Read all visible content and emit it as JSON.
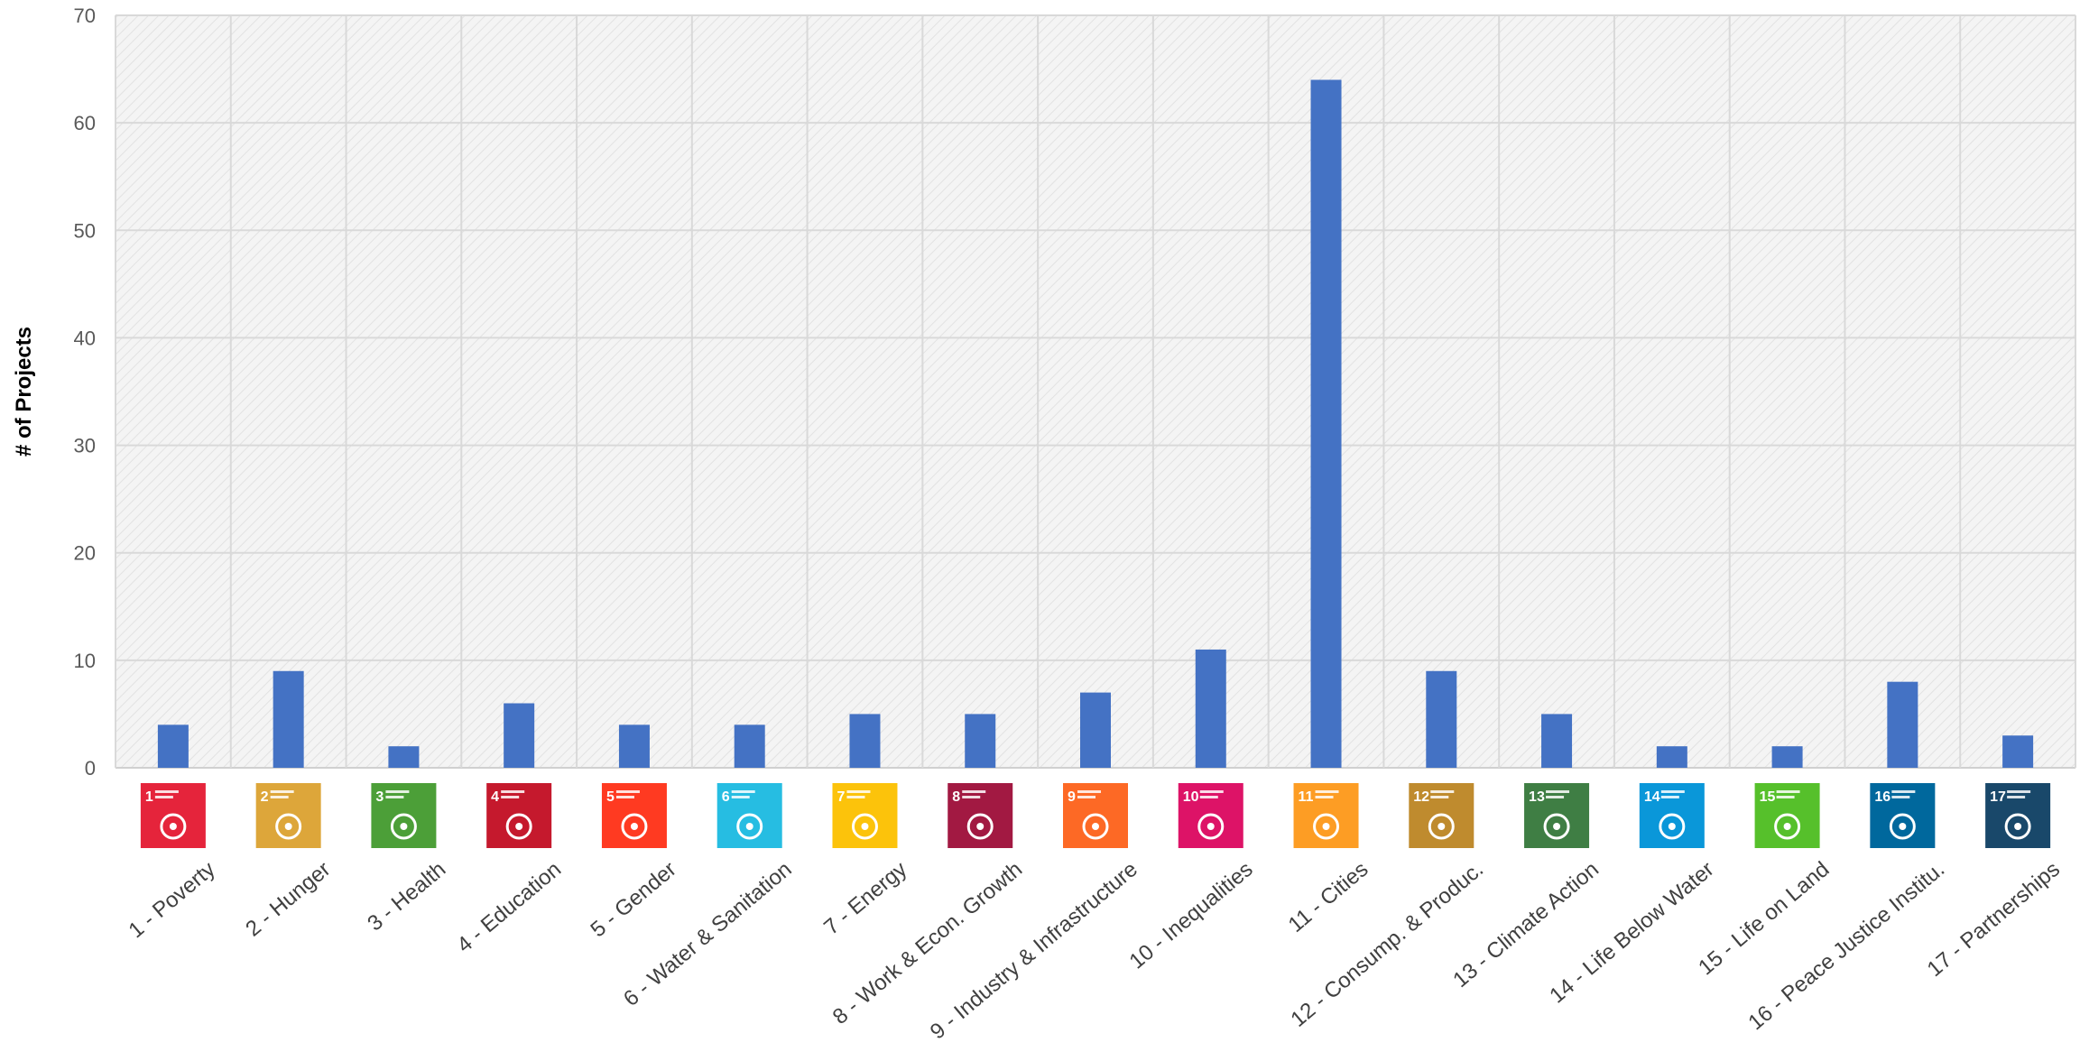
{
  "chart_data": {
    "type": "bar",
    "title": "",
    "xlabel": "",
    "ylabel": "# of Projects",
    "ylim": [
      0,
      70
    ],
    "yticks": [
      0,
      10,
      20,
      30,
      40,
      50,
      60,
      70
    ],
    "grid": true,
    "legend": "none",
    "bar_color": "#4472C4",
    "categories": [
      "1 - Poverty",
      "2 - Hunger",
      "3 - Health",
      "4 - Education",
      "5 - Gender",
      "6 - Water & Sanitation",
      "7 - Energy",
      "8 - Work & Econ. Growth",
      "9 - Industry & Infrastructure",
      "10 - Inequalities",
      "11 - Cities",
      "12 - Consump. & Produc.",
      "13 - Climate Action",
      "14 - Life Below Water",
      "15 - Life on Land",
      "16 - Peace Justice Institu.",
      "17 - Partnerships"
    ],
    "values": [
      4,
      9,
      2,
      6,
      4,
      4,
      5,
      5,
      7,
      11,
      64,
      9,
      5,
      2,
      2,
      8,
      3
    ],
    "icons": [
      {
        "number": "1",
        "color": "#E5243B",
        "name": "no-poverty-icon"
      },
      {
        "number": "2",
        "color": "#DDA63A",
        "name": "zero-hunger-icon"
      },
      {
        "number": "3",
        "color": "#4C9F38",
        "name": "good-health-icon"
      },
      {
        "number": "4",
        "color": "#C5192D",
        "name": "quality-education-icon"
      },
      {
        "number": "5",
        "color": "#FF3A21",
        "name": "gender-equality-icon"
      },
      {
        "number": "6",
        "color": "#26BDE2",
        "name": "clean-water-icon"
      },
      {
        "number": "7",
        "color": "#FCC30B",
        "name": "clean-energy-icon"
      },
      {
        "number": "8",
        "color": "#A21942",
        "name": "decent-work-icon"
      },
      {
        "number": "9",
        "color": "#FD6925",
        "name": "industry-innovation-icon"
      },
      {
        "number": "10",
        "color": "#DD1367",
        "name": "reduced-inequalities-icon"
      },
      {
        "number": "11",
        "color": "#FD9D24",
        "name": "sustainable-cities-icon"
      },
      {
        "number": "12",
        "color": "#BF8B2E",
        "name": "responsible-consumption-icon"
      },
      {
        "number": "13",
        "color": "#3F7E44",
        "name": "climate-action-icon"
      },
      {
        "number": "14",
        "color": "#0A97D9",
        "name": "life-below-water-icon"
      },
      {
        "number": "15",
        "color": "#56C02B",
        "name": "life-on-land-icon"
      },
      {
        "number": "16",
        "color": "#00689D",
        "name": "peace-justice-icon"
      },
      {
        "number": "17",
        "color": "#19486A",
        "name": "partnerships-icon"
      }
    ]
  }
}
